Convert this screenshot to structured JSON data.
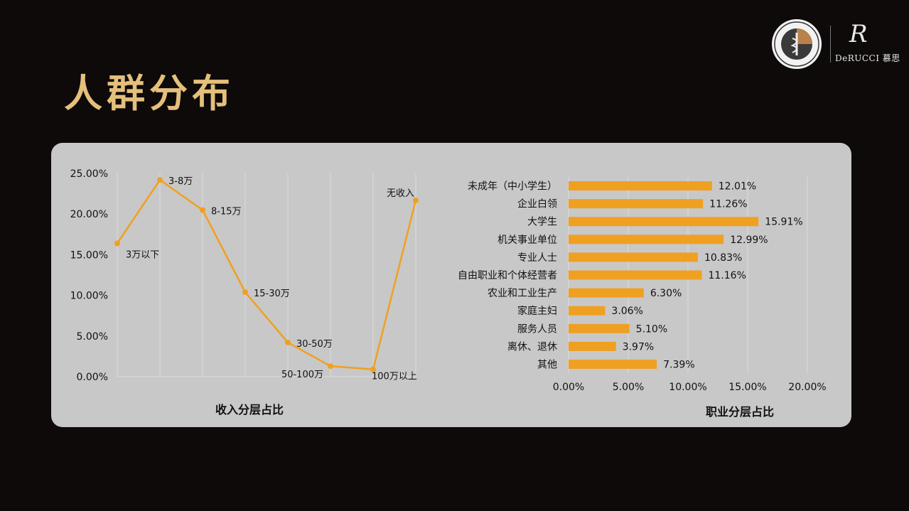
{
  "slide_title": "人群分布",
  "logos": {
    "seal_icon": "society-seal-icon",
    "brand_mark": "R",
    "brand_text": "DeRUCCI 慕思"
  },
  "colors": {
    "background": "#0d0a09",
    "title": "#e5bf7c",
    "panel": "#c8c8c8",
    "series": "#f0a020"
  },
  "chart_data": [
    {
      "type": "line",
      "title": "收入分层占比",
      "categories": [
        "3万以下",
        "3-8万",
        "8-15万",
        "15-30万",
        "30-50万",
        "50-100万",
        "100万以上",
        "无收入"
      ],
      "values": [
        16.4,
        24.2,
        20.5,
        10.4,
        4.2,
        1.3,
        0.9,
        21.7
      ],
      "ylim": [
        0,
        25
      ],
      "yticks": [
        "0.00%",
        "5.00%",
        "10.00%",
        "15.00%",
        "20.00%",
        "25.00%"
      ],
      "grid": "vertical"
    },
    {
      "type": "bar",
      "orientation": "horizontal",
      "title": "职业分层占比",
      "categories": [
        "未成年（中小学生）",
        "企业白领",
        "大学生",
        "机关事业单位",
        "专业人士",
        "自由职业和个体经营者",
        "农业和工业生产",
        "家庭主妇",
        "服务人员",
        "离休、退休",
        "其他"
      ],
      "values": [
        12.01,
        11.26,
        15.91,
        12.99,
        10.83,
        11.16,
        6.3,
        3.06,
        5.1,
        3.97,
        7.39
      ],
      "labels": [
        "12.01%",
        "11.26%",
        "15.91%",
        "12.99%",
        "10.83%",
        "11.16%",
        "6.30%",
        "3.06%",
        "5.10%",
        "3.97%",
        "7.39%"
      ],
      "xlim": [
        0,
        20
      ],
      "xticks": [
        "0.00%",
        "5.00%",
        "10.00%",
        "15.00%",
        "20.00%"
      ],
      "grid": "vertical"
    }
  ]
}
